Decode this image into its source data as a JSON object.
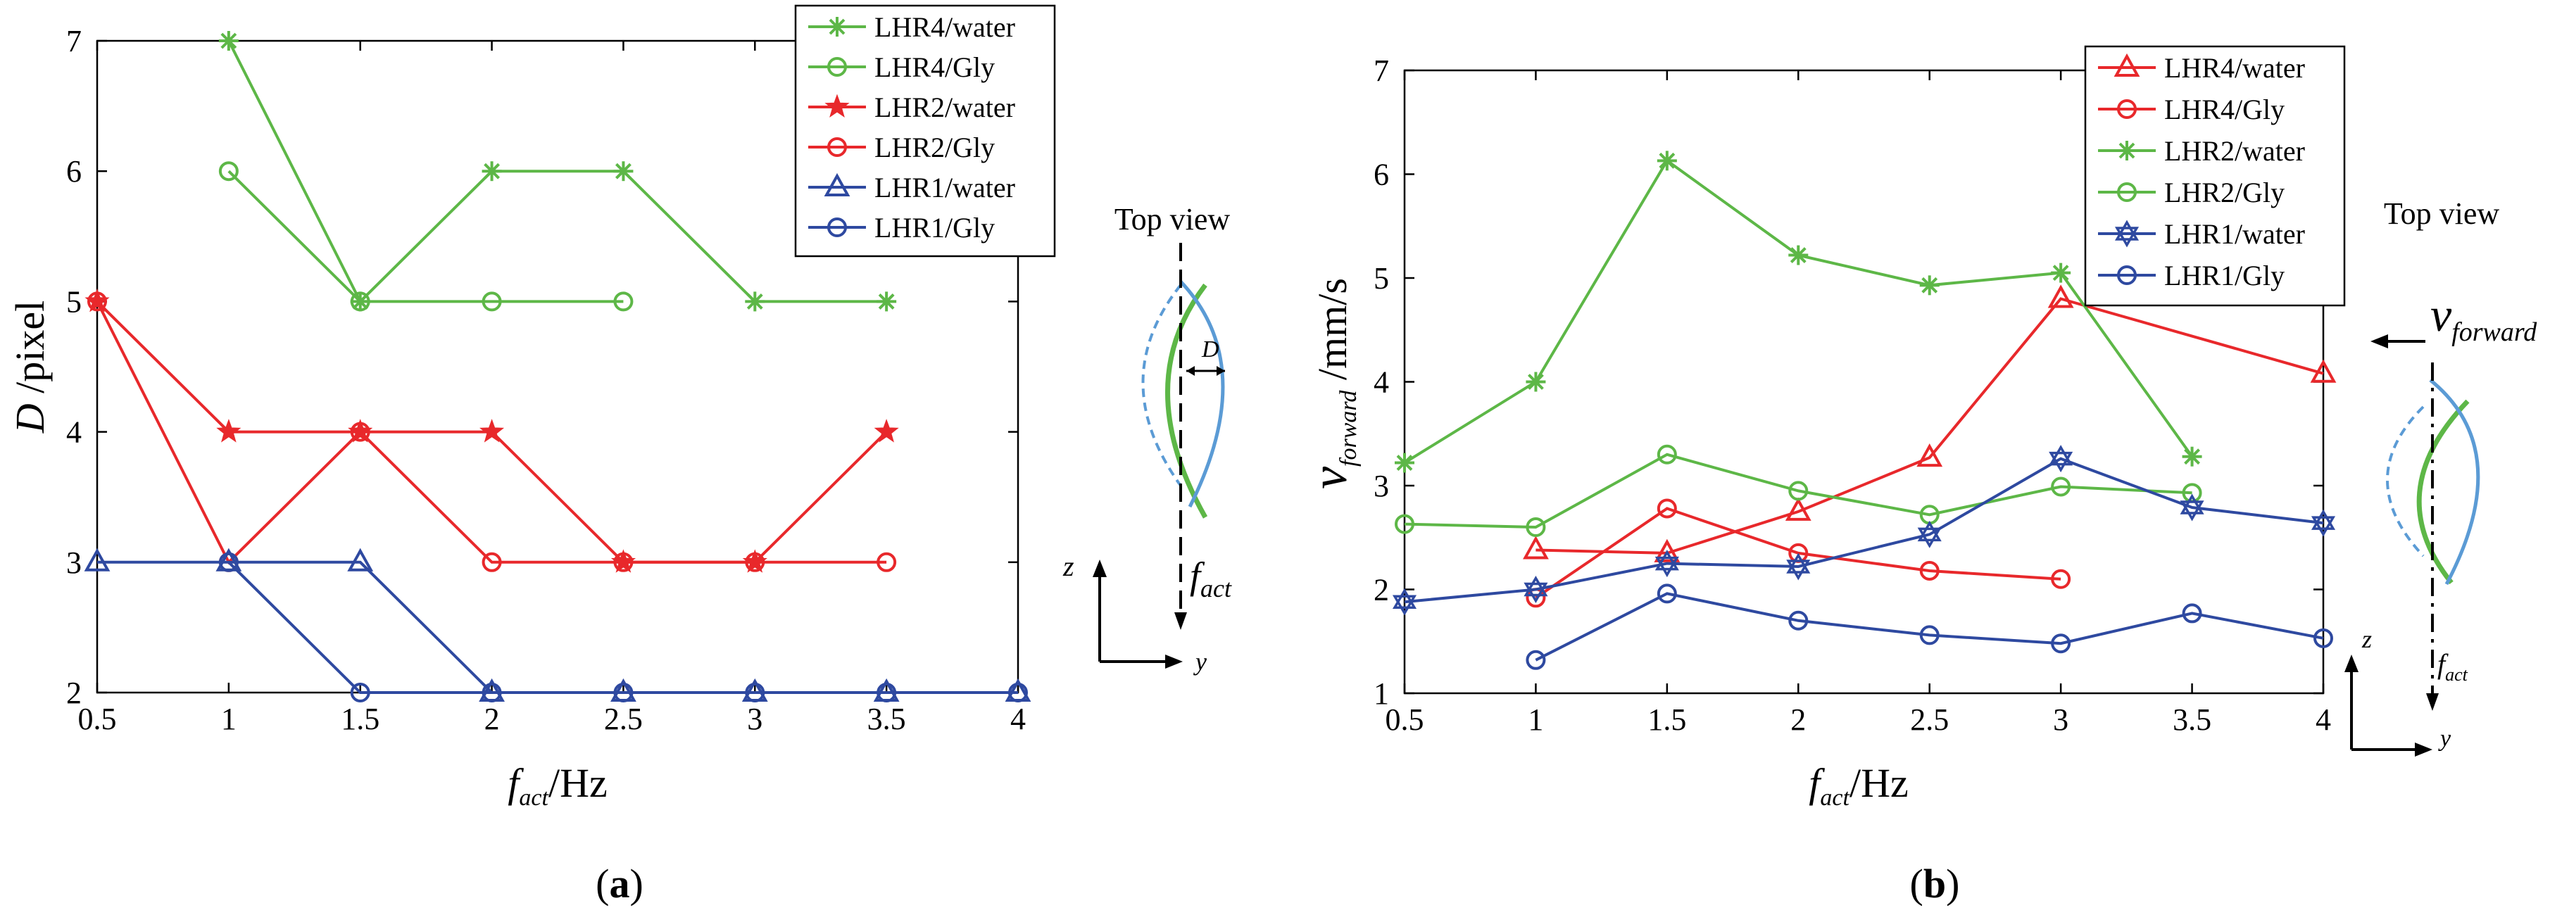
{
  "panel_a": {
    "caption": "(a)",
    "caption_bold": "a",
    "topview": {
      "title": "Top view",
      "d_label": "D",
      "f_main": "f",
      "f_sub": "act",
      "z_label": "z",
      "y_label": "y"
    },
    "ylabel": {
      "main": "D",
      "rest": " /pixel"
    },
    "xlabel": {
      "main": "f",
      "sub": "act",
      "rest": "/Hz"
    }
  },
  "panel_b": {
    "caption": "(b)",
    "caption_bold": "b",
    "topview": {
      "title": "Top view",
      "v_main": "v",
      "v_sub": "forward",
      "f_main": "f",
      "f_sub": "act",
      "z_label": "z",
      "y_label": "y"
    },
    "ylabel": {
      "main": "v",
      "sub": "forward",
      "rest": " /mm/s"
    },
    "xlabel": {
      "main": "f",
      "sub": "act",
      "rest": "/Hz"
    }
  },
  "chart_data": [
    {
      "type": "line",
      "xlim": [
        0.5,
        4
      ],
      "ylim": [
        2,
        7
      ],
      "xticks": [
        0.5,
        1,
        1.5,
        2,
        2.5,
        3,
        3.5,
        4
      ],
      "xtick_labels": [
        "0.5",
        "1",
        "1.5",
        "2",
        "2.5",
        "3",
        "3.5",
        "4"
      ],
      "yticks": [
        2,
        3,
        4,
        5,
        6,
        7
      ],
      "ytick_labels": [
        "2",
        "3",
        "4",
        "5",
        "6",
        "7"
      ],
      "xlabel": "f_act/Hz",
      "ylabel": "D /pixel",
      "legend_position": "top-right",
      "series": [
        {
          "name": "LHR4/water",
          "color": "#5db747",
          "marker": "asterisk",
          "x": [
            1,
            1.5,
            2,
            2.5,
            3,
            3.5
          ],
          "y": [
            7,
            5,
            6,
            6,
            5,
            5
          ]
        },
        {
          "name": "LHR4/Gly",
          "color": "#5db747",
          "marker": "circle",
          "x": [
            1,
            1.5,
            2,
            2.5
          ],
          "y": [
            6,
            5,
            5,
            5
          ]
        },
        {
          "name": "LHR2/water",
          "color": "#e8282b",
          "marker": "star",
          "x": [
            0.5,
            1,
            1.5,
            2,
            2.5,
            3,
            3.5
          ],
          "y": [
            5,
            4,
            4,
            4,
            3,
            3,
            4
          ]
        },
        {
          "name": "LHR2/Gly",
          "color": "#e8282b",
          "marker": "circle",
          "x": [
            0.5,
            1,
            1.5,
            2,
            2.5,
            3,
            3.5
          ],
          "y": [
            5,
            3,
            4,
            3,
            3,
            3,
            3
          ]
        },
        {
          "name": "LHR1/water",
          "color": "#2e49a0",
          "marker": "triangle",
          "x": [
            0.5,
            1,
            1.5,
            2,
            2.5,
            3,
            3.5,
            4
          ],
          "y": [
            3,
            3,
            3,
            2,
            2,
            2,
            2,
            2
          ]
        },
        {
          "name": "LHR1/Gly",
          "color": "#2e49a0",
          "marker": "circle",
          "x": [
            1,
            1.5,
            2,
            2.5,
            3,
            3.5,
            4
          ],
          "y": [
            3,
            2,
            2,
            2,
            2,
            2,
            2
          ]
        }
      ]
    },
    {
      "type": "line",
      "xlim": [
        0.5,
        4
      ],
      "ylim": [
        1,
        7
      ],
      "xticks": [
        0.5,
        1,
        1.5,
        2,
        2.5,
        3,
        3.5,
        4
      ],
      "xtick_labels": [
        "0.5",
        "1",
        "1.5",
        "2",
        "2.5",
        "3",
        "3.5",
        "4"
      ],
      "yticks": [
        1,
        2,
        3,
        4,
        5,
        6,
        7
      ],
      "ytick_labels": [
        "1",
        "2",
        "3",
        "4",
        "5",
        "6",
        "7"
      ],
      "xlabel": "f_act/Hz",
      "ylabel": "v_forward /mm/s",
      "legend_position": "top-right",
      "series": [
        {
          "name": "LHR4/water",
          "color": "#e8282b",
          "marker": "triangle",
          "x": [
            1,
            1.5,
            2,
            2.5,
            3,
            4
          ],
          "y": [
            2.38,
            2.35,
            2.75,
            3.27,
            4.8,
            4.08
          ]
        },
        {
          "name": "LHR4/Gly",
          "color": "#e8282b",
          "marker": "circle",
          "x": [
            1,
            1.5,
            2,
            2.5,
            3
          ],
          "y": [
            1.92,
            2.78,
            2.35,
            2.18,
            2.1
          ]
        },
        {
          "name": "LHR2/water",
          "color": "#5db747",
          "marker": "asterisk",
          "x": [
            0.5,
            1,
            1.5,
            2,
            2.5,
            3,
            3.5
          ],
          "y": [
            3.22,
            4.0,
            6.13,
            5.22,
            4.93,
            5.05,
            3.28
          ]
        },
        {
          "name": "LHR2/Gly",
          "color": "#5db747",
          "marker": "circle",
          "x": [
            0.5,
            1,
            1.5,
            2,
            2.5,
            3,
            3.5
          ],
          "y": [
            2.63,
            2.6,
            3.3,
            2.95,
            2.72,
            2.99,
            2.93
          ]
        },
        {
          "name": "LHR1/water",
          "color": "#2e49a0",
          "marker": "hexagram",
          "x": [
            0.5,
            1,
            1.5,
            2,
            2.5,
            3,
            3.5,
            4
          ],
          "y": [
            1.88,
            2.0,
            2.25,
            2.22,
            2.53,
            3.26,
            2.79,
            2.64
          ]
        },
        {
          "name": "LHR1/Gly",
          "color": "#2e49a0",
          "marker": "circle",
          "x": [
            1,
            1.5,
            2,
            2.5,
            3,
            3.5,
            4
          ],
          "y": [
            1.32,
            1.96,
            1.7,
            1.56,
            1.48,
            1.77,
            1.53
          ]
        }
      ]
    }
  ]
}
